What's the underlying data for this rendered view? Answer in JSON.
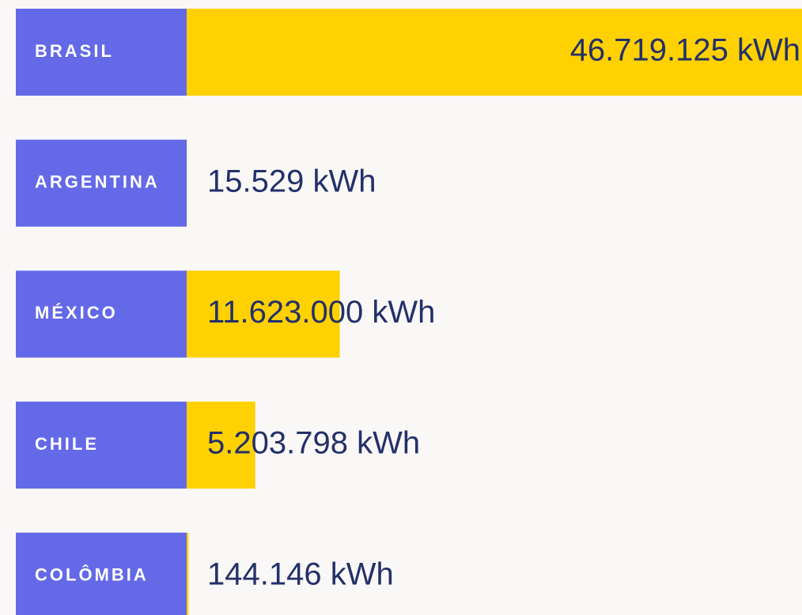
{
  "chart_data": {
    "type": "bar",
    "orientation": "horizontal",
    "categories": [
      "BRASIL",
      "ARGENTINA",
      "MÉXICO",
      "CHILE",
      "COLÔMBIA"
    ],
    "values": [
      46719125,
      15529,
      11623000,
      5203798,
      144146
    ],
    "value_labels": [
      "46.719.125 kWh",
      "15.529 kWh",
      "11.623.000 kWh",
      "5.203.798 kWh",
      "144.146 kWh"
    ],
    "color": "#ffd100",
    "label_color": "#6469e8"
  }
}
